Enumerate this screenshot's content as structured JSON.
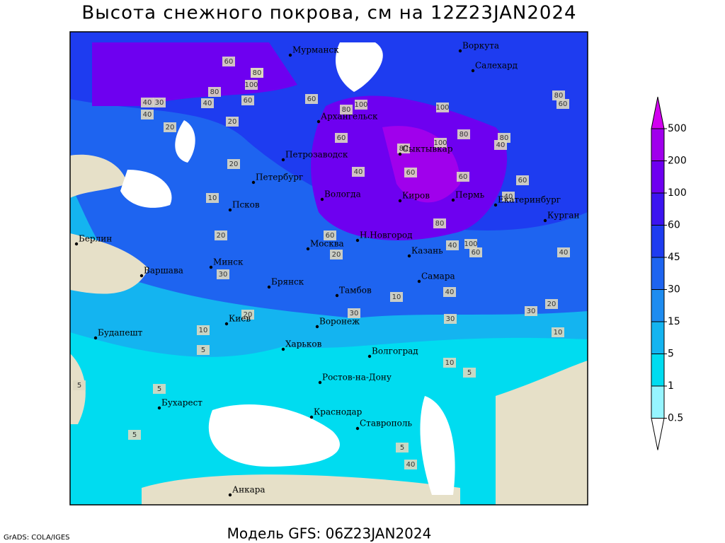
{
  "title": "Высота снежного покрова, см на 12Z23JAN2024",
  "footer": "Модель GFS: 06Z23JAN2024",
  "credit": "GrADS: COLA/IGES",
  "cities": [
    "Мурманск",
    "Воркута",
    "Салехард",
    "Архангельск",
    "Сыктывкар",
    "Петрозаводск",
    "Петербург",
    "Вологда",
    "Киров",
    "Пермь",
    "Екатеринбург",
    "Курган",
    "Псков",
    "Берлин",
    "Москва",
    "Н.Новгород",
    "Казань",
    "Минск",
    "Варшава",
    "Самара",
    "Брянск",
    "Тамбов",
    "Киев",
    "Воронеж",
    "Будапешт",
    "Харьков",
    "Волгоград",
    "Ростов-на-Дону",
    "Бухарест",
    "Краснодар",
    "Ставрополь",
    "Анкара"
  ],
  "contour_labels": [
    60,
    80,
    100,
    80,
    60,
    40,
    30,
    40,
    20,
    40,
    20,
    80,
    100,
    60,
    100,
    80,
    100,
    80,
    60,
    80,
    40,
    60,
    80,
    60,
    60,
    40,
    40,
    20,
    10,
    20,
    30,
    60,
    80,
    40,
    100,
    60,
    40,
    20,
    30,
    10,
    5,
    10,
    5,
    5,
    5,
    40,
    30,
    20,
    10,
    10,
    5,
    5,
    40,
    30,
    20,
    80,
    60
  ],
  "legend": {
    "levels": [
      500,
      200,
      100,
      60,
      45,
      30,
      15,
      5,
      1,
      0.5
    ],
    "colors": [
      "#d200f0",
      "#a000ec",
      "#6e00f0",
      "#3c14f0",
      "#1e3cf0",
      "#1e64f0",
      "#1e8cf0",
      "#14b4f0",
      "#00dcf0",
      "#96f5ff",
      "#ffffff"
    ]
  }
}
